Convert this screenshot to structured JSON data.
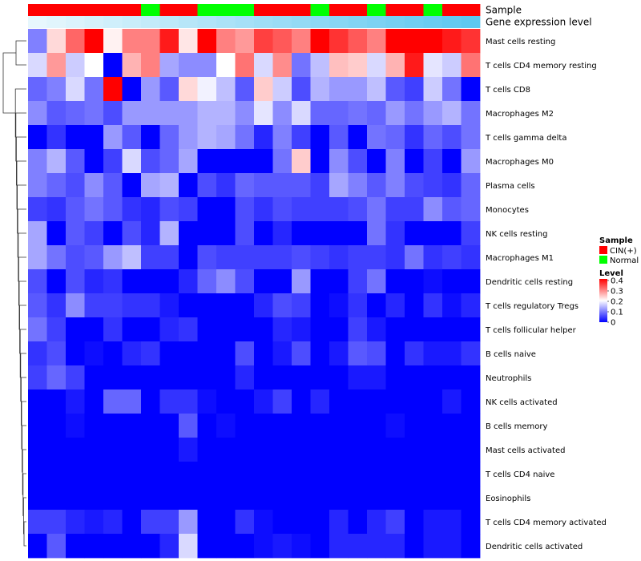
{
  "chart_data": {
    "type": "heatmap",
    "title": "",
    "annotation_labels": [
      "Sample",
      "Gene expression level"
    ],
    "columns_count": 24,
    "sample_groups": [
      "CIN(+)",
      "CIN(+)",
      "CIN(+)",
      "CIN(+)",
      "CIN(+)",
      "CIN(+)",
      "Normal",
      "CIN(+)",
      "CIN(+)",
      "Normal",
      "Normal",
      "Normal",
      "CIN(+)",
      "CIN(+)",
      "CIN(+)",
      "Normal",
      "CIN(+)",
      "CIN(+)",
      "Normal",
      "CIN(+)",
      "CIN(+)",
      "Normal",
      "CIN(+)",
      "CIN(+)"
    ],
    "gene_expression_level": [
      0.1,
      0.1,
      0.1,
      0.1,
      0.1,
      0.1,
      0.1,
      0.1,
      0.1,
      0.1,
      0.1,
      0.1,
      0.1,
      0.1,
      0.1,
      0.1,
      0.1,
      0.1,
      0.1,
      0.1,
      0.1,
      0.1,
      0.1,
      0.1
    ],
    "rows": [
      "Mast cells resting",
      "T cells CD4 memory resting",
      "T cells CD8",
      "Macrophages M2",
      "T cells gamma delta",
      "Macrophages M0",
      "Plasma cells",
      "Monocytes",
      "NK cells resting",
      "Macrophages M1",
      "Dendritic cells resting",
      "T cells regulatory  Tregs",
      "T cells follicular helper",
      "B cells naive",
      "Neutrophils",
      "NK cells activated",
      "B cells memory",
      "Mast cells activated",
      "T cells CD4 naive",
      "Eosinophils",
      "T cells CD4 memory activated",
      "Dendritic cells activated"
    ],
    "values": [
      [
        0.1,
        0.23,
        0.32,
        0.4,
        0.21,
        0.3,
        0.3,
        0.38,
        0.22,
        0.4,
        0.3,
        0.28,
        0.35,
        0.33,
        0.3,
        0.4,
        0.36,
        0.33,
        0.3,
        0.4,
        0.4,
        0.4,
        0.38,
        0.36
      ],
      [
        0.17,
        0.28,
        0.16,
        0.2,
        0.0,
        0.26,
        0.3,
        0.13,
        0.11,
        0.11,
        0.2,
        0.31,
        0.17,
        0.29,
        0.09,
        0.15,
        0.25,
        0.24,
        0.17,
        0.26,
        0.38,
        0.18,
        0.16,
        0.31
      ],
      [
        0.08,
        0.1,
        0.17,
        0.09,
        0.4,
        0.0,
        0.12,
        0.07,
        0.23,
        0.19,
        0.15,
        0.07,
        0.24,
        0.16,
        0.06,
        0.14,
        0.12,
        0.12,
        0.15,
        0.07,
        0.05,
        0.16,
        0.09,
        0.0
      ],
      [
        0.11,
        0.07,
        0.08,
        0.09,
        0.06,
        0.12,
        0.12,
        0.12,
        0.12,
        0.14,
        0.14,
        0.11,
        0.18,
        0.11,
        0.17,
        0.08,
        0.08,
        0.09,
        0.08,
        0.12,
        0.09,
        0.12,
        0.14,
        0.09
      ],
      [
        0.0,
        0.04,
        0.0,
        0.0,
        0.12,
        0.07,
        0.0,
        0.08,
        0.12,
        0.14,
        0.13,
        0.09,
        0.03,
        0.1,
        0.05,
        0.0,
        0.07,
        0.0,
        0.09,
        0.08,
        0.04,
        0.08,
        0.06,
        0.09
      ],
      [
        0.1,
        0.14,
        0.07,
        0.0,
        0.05,
        0.17,
        0.06,
        0.08,
        0.13,
        0.0,
        0.0,
        0.0,
        0.0,
        0.09,
        0.24,
        0.0,
        0.11,
        0.06,
        0.0,
        0.1,
        0.0,
        0.05,
        0.0,
        0.12
      ],
      [
        0.1,
        0.08,
        0.06,
        0.11,
        0.07,
        0.0,
        0.13,
        0.14,
        0.0,
        0.06,
        0.04,
        0.08,
        0.07,
        0.07,
        0.07,
        0.05,
        0.13,
        0.1,
        0.07,
        0.1,
        0.06,
        0.05,
        0.04,
        0.08
      ],
      [
        0.05,
        0.04,
        0.07,
        0.09,
        0.07,
        0.04,
        0.03,
        0.06,
        0.05,
        0.0,
        0.0,
        0.06,
        0.04,
        0.06,
        0.05,
        0.05,
        0.05,
        0.06,
        0.09,
        0.05,
        0.05,
        0.11,
        0.07,
        0.08
      ],
      [
        0.13,
        0.0,
        0.07,
        0.05,
        0.0,
        0.06,
        0.03,
        0.14,
        0.0,
        0.0,
        0.0,
        0.06,
        0.0,
        0.03,
        0.0,
        0.0,
        0.0,
        0.0,
        0.09,
        0.04,
        0.0,
        0.0,
        0.0,
        0.05
      ],
      [
        0.13,
        0.09,
        0.06,
        0.07,
        0.12,
        0.15,
        0.05,
        0.05,
        0.0,
        0.06,
        0.05,
        0.05,
        0.05,
        0.05,
        0.06,
        0.05,
        0.04,
        0.05,
        0.05,
        0.04,
        0.09,
        0.04,
        0.05,
        0.04
      ],
      [
        0.06,
        0.0,
        0.06,
        0.03,
        0.04,
        0.0,
        0.0,
        0.0,
        0.03,
        0.08,
        0.11,
        0.06,
        0.0,
        0.0,
        0.12,
        0.0,
        0.0,
        0.05,
        0.09,
        0.0,
        0.0,
        0.01,
        0.0,
        0.0
      ],
      [
        0.07,
        0.04,
        0.11,
        0.05,
        0.05,
        0.04,
        0.04,
        0.02,
        0.0,
        0.0,
        0.0,
        0.0,
        0.03,
        0.06,
        0.05,
        0.0,
        0.01,
        0.04,
        0.0,
        0.03,
        0.0,
        0.04,
        0.01,
        0.03
      ],
      [
        0.09,
        0.05,
        0.0,
        0.0,
        0.04,
        0.0,
        0.0,
        0.03,
        0.04,
        0.0,
        0.0,
        0.0,
        0.0,
        0.03,
        0.02,
        0.0,
        0.0,
        0.05,
        0.02,
        0.0,
        0.0,
        0.0,
        0.0,
        0.0
      ],
      [
        0.04,
        0.06,
        0.0,
        0.01,
        0.0,
        0.03,
        0.04,
        0.0,
        0.0,
        0.0,
        0.0,
        0.06,
        0.0,
        0.02,
        0.06,
        0.0,
        0.02,
        0.07,
        0.06,
        0.0,
        0.04,
        0.02,
        0.02,
        0.04
      ],
      [
        0.05,
        0.08,
        0.05,
        0.0,
        0.0,
        0.0,
        0.0,
        0.0,
        0.0,
        0.0,
        0.0,
        0.03,
        0.0,
        0.0,
        0.0,
        0.0,
        0.0,
        0.02,
        0.02,
        0.0,
        0.0,
        0.0,
        0.0,
        0.0
      ],
      [
        0.0,
        0.0,
        0.02,
        0.0,
        0.08,
        0.08,
        0.0,
        0.04,
        0.04,
        0.01,
        0.0,
        0.0,
        0.02,
        0.05,
        0.0,
        0.03,
        0.0,
        0.0,
        0.0,
        0.0,
        0.0,
        0.0,
        0.02,
        0.0
      ],
      [
        0.0,
        0.0,
        0.01,
        0.0,
        0.0,
        0.0,
        0.0,
        0.0,
        0.07,
        0.0,
        0.01,
        0.0,
        0.0,
        0.0,
        0.0,
        0.0,
        0.0,
        0.0,
        0.0,
        0.01,
        0.0,
        0.0,
        0.0,
        0.0
      ],
      [
        0.0,
        0.0,
        0.0,
        0.0,
        0.0,
        0.0,
        0.0,
        0.0,
        0.02,
        0.0,
        0.0,
        0.0,
        0.0,
        0.0,
        0.0,
        0.0,
        0.0,
        0.0,
        0.0,
        0.0,
        0.0,
        0.0,
        0.0,
        0.0
      ],
      [
        0.0,
        0.0,
        0.0,
        0.0,
        0.0,
        0.0,
        0.0,
        0.0,
        0.0,
        0.0,
        0.0,
        0.0,
        0.0,
        0.0,
        0.0,
        0.0,
        0.0,
        0.0,
        0.0,
        0.0,
        0.0,
        0.0,
        0.0,
        0.0
      ],
      [
        0.0,
        0.0,
        0.0,
        0.0,
        0.0,
        0.0,
        0.0,
        0.0,
        0.0,
        0.0,
        0.0,
        0.0,
        0.0,
        0.0,
        0.0,
        0.0,
        0.0,
        0.0,
        0.0,
        0.0,
        0.0,
        0.0,
        0.0,
        0.0
      ],
      [
        0.05,
        0.05,
        0.03,
        0.02,
        0.03,
        0.0,
        0.05,
        0.05,
        0.12,
        0.0,
        0.0,
        0.04,
        0.01,
        0.0,
        0.0,
        0.0,
        0.03,
        0.0,
        0.03,
        0.05,
        0.0,
        0.02,
        0.02,
        0.0
      ],
      [
        0.0,
        0.07,
        0.0,
        0.0,
        0.0,
        0.0,
        0.0,
        0.03,
        0.17,
        0.0,
        0.0,
        0.0,
        0.01,
        0.02,
        0.01,
        0.0,
        0.03,
        0.03,
        0.03,
        0.03,
        0.0,
        0.02,
        0.02,
        0.0
      ]
    ],
    "legend": {
      "sample_title": "Sample",
      "sample_items": [
        {
          "label": "CIN(+)",
          "color": "#ff0000"
        },
        {
          "label": "Normal",
          "color": "#00ff00"
        }
      ],
      "level_title": "Level",
      "level_ticks": [
        "0.4",
        "0.3",
        "0.2",
        "0.1",
        "0"
      ],
      "level_range": [
        0,
        0.4
      ]
    },
    "colors": {
      "low": "#0000ff",
      "mid": "#ffffff",
      "high": "#ff0000",
      "gene_expression_bar": "#5ec8f0"
    }
  }
}
